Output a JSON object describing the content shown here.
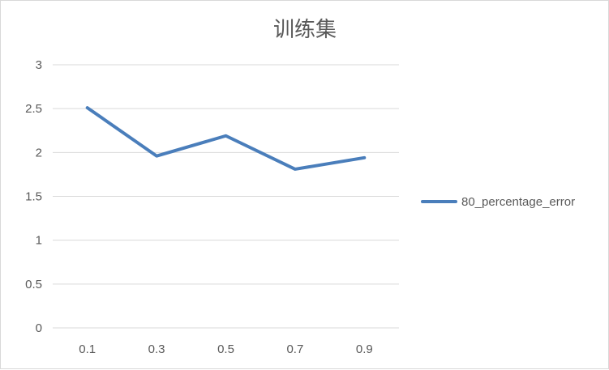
{
  "chart_data": {
    "type": "line",
    "title": "训练集",
    "xlabel": "",
    "ylabel": "",
    "categories": [
      "0.1",
      "0.3",
      "0.5",
      "0.7",
      "0.9"
    ],
    "series": [
      {
        "name": "80_percentage_error",
        "values": [
          2.51,
          1.96,
          2.19,
          1.81,
          1.94
        ],
        "color": "#4a7ebb"
      }
    ],
    "ylim": [
      0,
      3
    ],
    "yticks": [
      "0",
      "0.5",
      "1",
      "1.5",
      "2",
      "2.5",
      "3"
    ],
    "grid": true,
    "legend_position": "right"
  }
}
